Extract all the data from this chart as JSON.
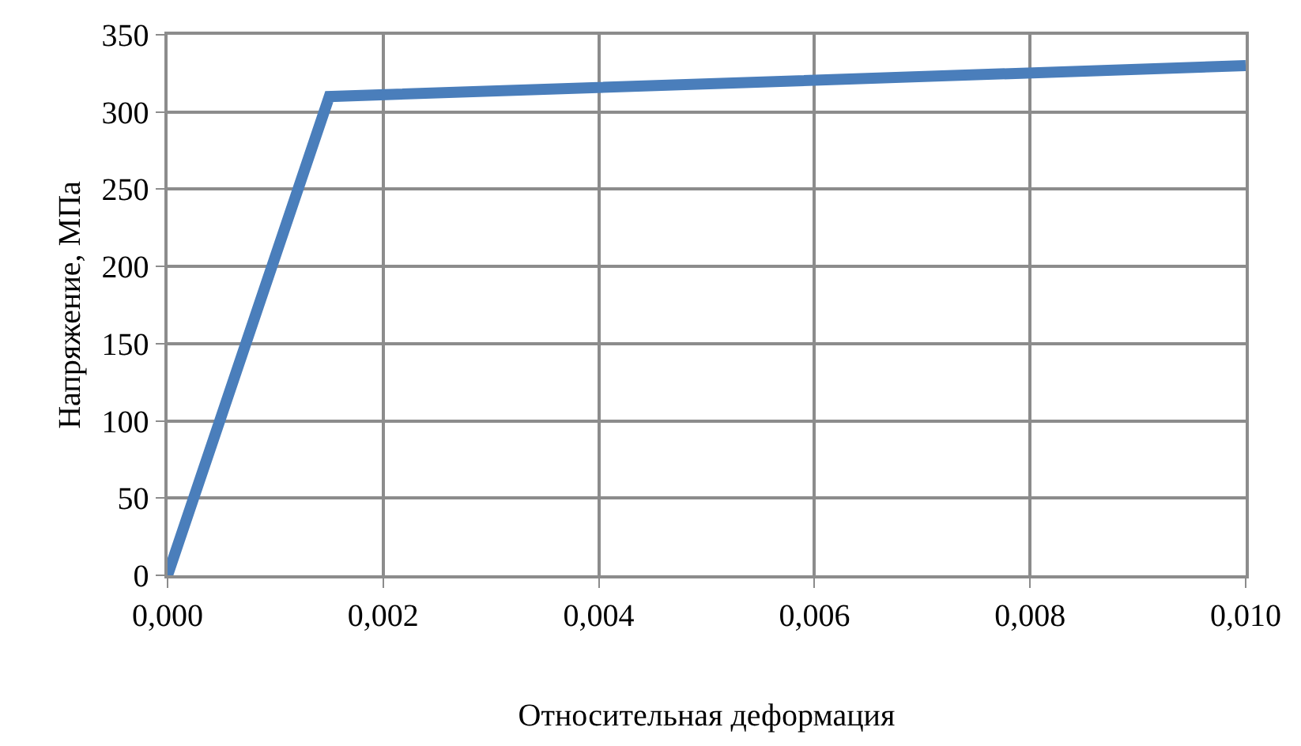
{
  "chart_data": {
    "type": "line",
    "xlabel": "Относительная деформация",
    "ylabel": "Напряжение, МПа",
    "x": [
      0,
      0.0015,
      0.01
    ],
    "series": [
      {
        "color": "#4a7ebb",
        "values": [
          0,
          310,
          330
        ]
      }
    ],
    "xlim": [
      0,
      0.01
    ],
    "xticks": [
      {
        "value": 0,
        "label": "0,000"
      },
      {
        "value": 0.002,
        "label": "0,002"
      },
      {
        "value": 0.004,
        "label": "0,004"
      },
      {
        "value": 0.006,
        "label": "0,006"
      },
      {
        "value": 0.008,
        "label": "0,008"
      },
      {
        "value": 0.01,
        "label": "0,010"
      }
    ],
    "ylim": [
      0,
      350
    ],
    "yticks": [
      0,
      50,
      100,
      150,
      200,
      250,
      300,
      350
    ],
    "grid": true,
    "legend": false,
    "marker": "none",
    "line_style": "solid"
  }
}
